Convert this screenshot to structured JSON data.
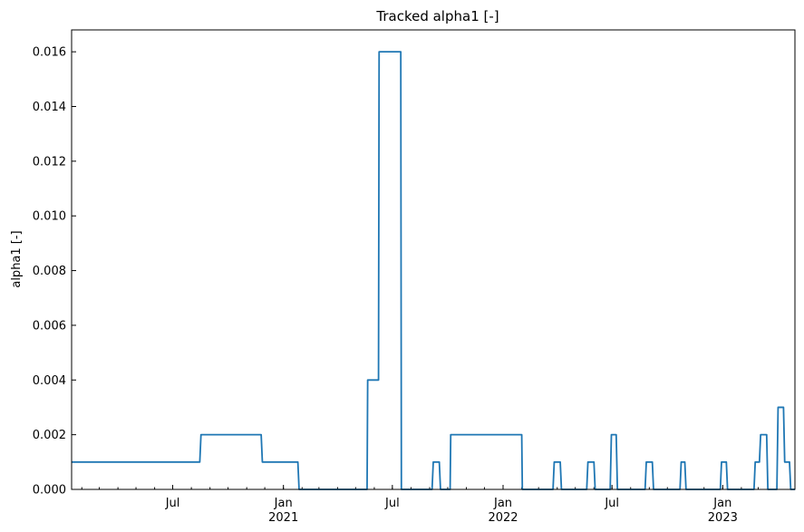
{
  "chart_data": {
    "type": "line",
    "title": "Tracked alpha1 [-]",
    "xlabel": "",
    "ylabel": "alpha1 [-]",
    "ylim": [
      0,
      0.0168
    ],
    "xlim": [
      "2020-01-15",
      "2023-05-01"
    ],
    "grid": false,
    "color": "#1f77b4",
    "yticks": [
      0.0,
      0.002,
      0.004,
      0.006,
      0.008,
      0.01,
      0.012,
      0.014,
      0.016
    ],
    "ytick_labels": [
      "0.000",
      "0.002",
      "0.004",
      "0.006",
      "0.008",
      "0.010",
      "0.012",
      "0.014",
      "0.016"
    ],
    "xticks": [
      {
        "date": "2020-07-01",
        "label": "Jul",
        "sublabel": ""
      },
      {
        "date": "2021-01-01",
        "label": "Jan",
        "sublabel": "2021"
      },
      {
        "date": "2021-07-01",
        "label": "Jul",
        "sublabel": ""
      },
      {
        "date": "2022-01-01",
        "label": "Jan",
        "sublabel": "2022"
      },
      {
        "date": "2022-07-01",
        "label": "Jul",
        "sublabel": ""
      },
      {
        "date": "2023-01-01",
        "label": "Jan",
        "sublabel": "2023"
      }
    ],
    "series": [
      {
        "points": [
          [
            "2020-01-15",
            0.001
          ],
          [
            "2020-08-15",
            0.001
          ],
          [
            "2020-08-17",
            0.002
          ],
          [
            "2020-11-25",
            0.002
          ],
          [
            "2020-11-27",
            0.001
          ],
          [
            "2021-01-25",
            0.001
          ],
          [
            "2021-01-27",
            0.0
          ],
          [
            "2021-05-20",
            0.0
          ],
          [
            "2021-05-21",
            0.004
          ],
          [
            "2021-06-08",
            0.004
          ],
          [
            "2021-06-09",
            0.016
          ],
          [
            "2021-07-15",
            0.016
          ],
          [
            "2021-07-16",
            0.0
          ],
          [
            "2021-09-05",
            0.0
          ],
          [
            "2021-09-07",
            0.001
          ],
          [
            "2021-09-17",
            0.001
          ],
          [
            "2021-09-19",
            0.0
          ],
          [
            "2021-10-05",
            0.0
          ],
          [
            "2021-10-06",
            0.002
          ],
          [
            "2022-02-01",
            0.002
          ],
          [
            "2022-02-02",
            0.0
          ],
          [
            "2022-03-25",
            0.0
          ],
          [
            "2022-03-27",
            0.001
          ],
          [
            "2022-04-06",
            0.001
          ],
          [
            "2022-04-08",
            0.0
          ],
          [
            "2022-05-20",
            0.0
          ],
          [
            "2022-05-22",
            0.001
          ],
          [
            "2022-06-01",
            0.001
          ],
          [
            "2022-06-03",
            0.0
          ],
          [
            "2022-06-28",
            0.0
          ],
          [
            "2022-06-30",
            0.002
          ],
          [
            "2022-07-08",
            0.002
          ],
          [
            "2022-07-10",
            0.0
          ],
          [
            "2022-08-25",
            0.0
          ],
          [
            "2022-08-27",
            0.001
          ],
          [
            "2022-09-06",
            0.001
          ],
          [
            "2022-09-08",
            0.0
          ],
          [
            "2022-10-22",
            0.0
          ],
          [
            "2022-10-24",
            0.001
          ],
          [
            "2022-10-30",
            0.001
          ],
          [
            "2022-11-01",
            0.0
          ],
          [
            "2022-12-28",
            0.0
          ],
          [
            "2022-12-30",
            0.001
          ],
          [
            "2023-01-07",
            0.001
          ],
          [
            "2023-01-09",
            0.0
          ],
          [
            "2023-02-22",
            0.0
          ],
          [
            "2023-02-24",
            0.001
          ],
          [
            "2023-03-03",
            0.001
          ],
          [
            "2023-03-05",
            0.002
          ],
          [
            "2023-03-15",
            0.002
          ],
          [
            "2023-03-17",
            0.0
          ],
          [
            "2023-04-01",
            0.0
          ],
          [
            "2023-04-03",
            0.003
          ],
          [
            "2023-04-12",
            0.003
          ],
          [
            "2023-04-14",
            0.001
          ],
          [
            "2023-04-22",
            0.001
          ],
          [
            "2023-04-24",
            0.0
          ],
          [
            "2023-05-01",
            0.0
          ]
        ]
      }
    ]
  }
}
